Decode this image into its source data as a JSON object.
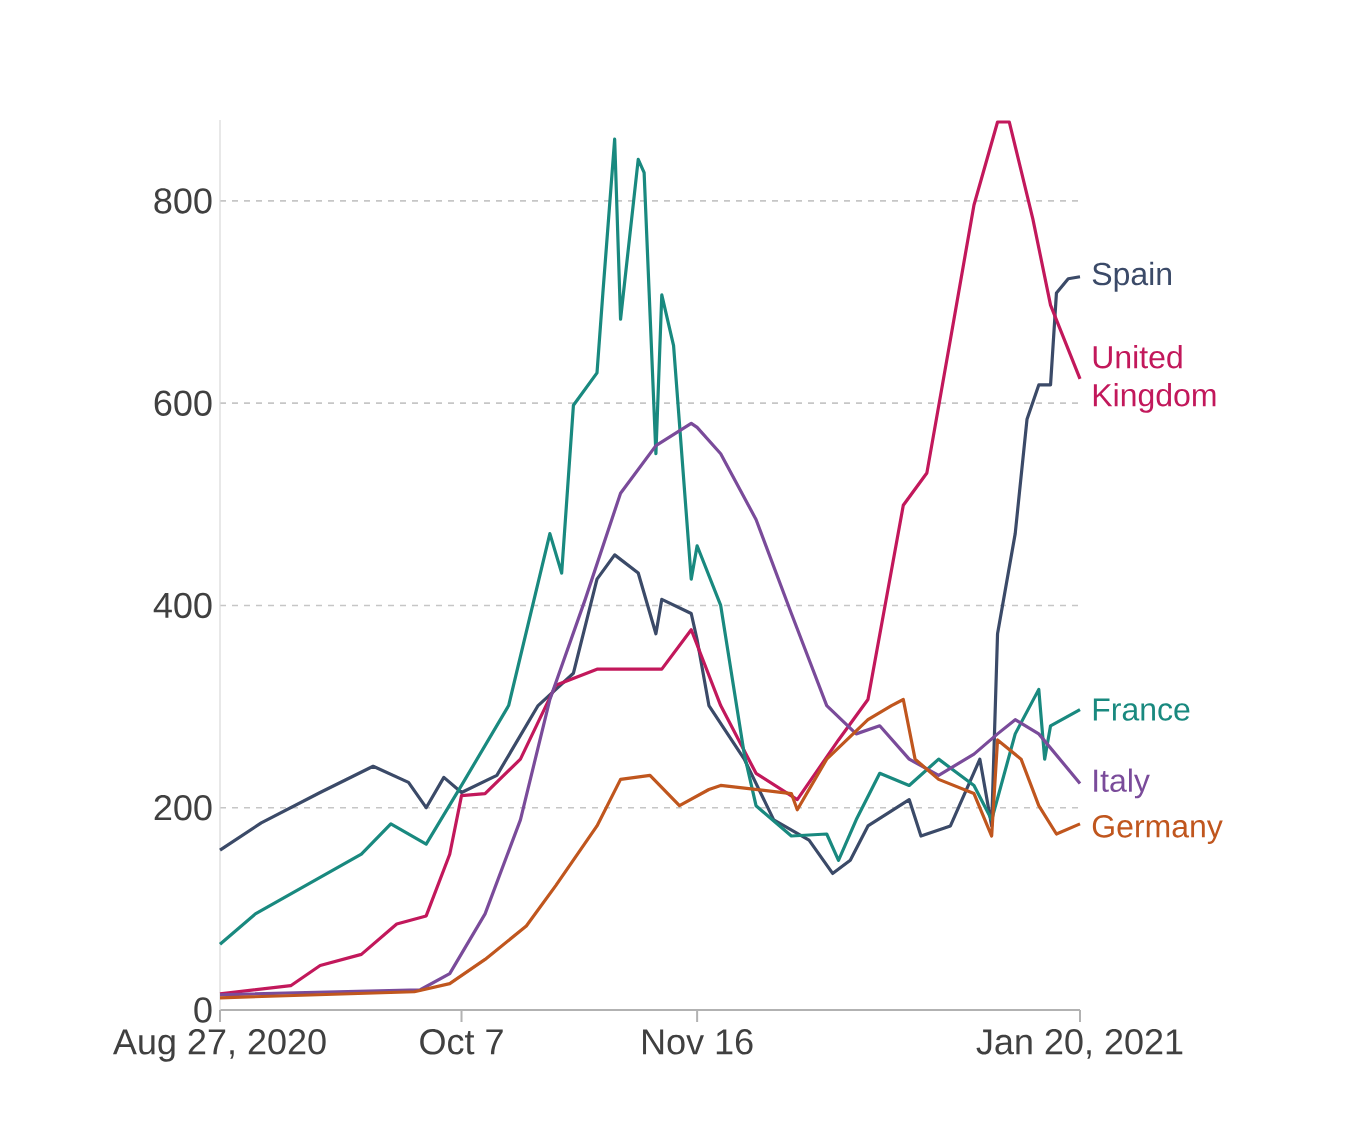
{
  "chart_data": {
    "type": "line",
    "xlim": [
      "2020-08-27",
      "2021-01-20"
    ],
    "xticks": [
      {
        "value": "2020-08-27",
        "label": "Aug 27, 2020"
      },
      {
        "value": "2020-10-07",
        "label": "Oct 7"
      },
      {
        "value": "2020-11-16",
        "label": "Nov 16"
      },
      {
        "value": "2021-01-20",
        "label": "Jan 20, 2021"
      }
    ],
    "ylim": [
      0,
      880
    ],
    "yticks": [
      0,
      200,
      400,
      600,
      800
    ],
    "grid": "y",
    "legend": false,
    "series": [
      {
        "name": "Spain",
        "color": "#3b4a68",
        "x": [
          "2020-08-27",
          "2020-09-03",
          "2020-09-13",
          "2020-09-22",
          "2020-09-28",
          "2020-10-01",
          "2020-10-04",
          "2020-10-07",
          "2020-10-13",
          "2020-10-20",
          "2020-10-26",
          "2020-10-30",
          "2020-11-02",
          "2020-11-06",
          "2020-11-09",
          "2020-11-10",
          "2020-11-15",
          "2020-11-16",
          "2020-11-18",
          "2020-11-24",
          "2020-11-29",
          "2020-12-05",
          "2020-12-09",
          "2020-12-12",
          "2020-12-15",
          "2020-12-22",
          "2020-12-24",
          "2020-12-29",
          "2021-01-03",
          "2021-01-05",
          "2021-01-06",
          "2021-01-09",
          "2021-01-11",
          "2021-01-13",
          "2021-01-15",
          "2021-01-16",
          "2021-01-18",
          "2021-01-20"
        ],
        "values": [
          158,
          185,
          215,
          241,
          225,
          200,
          230,
          215,
          232,
          301,
          333,
          426,
          450,
          432,
          372,
          406,
          392,
          366,
          301,
          248,
          188,
          168,
          135,
          148,
          182,
          208,
          172,
          182,
          248,
          182,
          372,
          471,
          584,
          618,
          618,
          709,
          723,
          725
        ]
      },
      {
        "name": "United Kingdom",
        "color": "#c2185b",
        "x": [
          "2020-08-27",
          "2020-09-08",
          "2020-09-13",
          "2020-09-20",
          "2020-09-26",
          "2020-10-01",
          "2020-10-05",
          "2020-10-07",
          "2020-10-11",
          "2020-10-17",
          "2020-10-23",
          "2020-10-30",
          "2020-11-10",
          "2020-11-15",
          "2020-11-20",
          "2020-11-26",
          "2020-12-03",
          "2020-12-10",
          "2020-12-15",
          "2020-12-21",
          "2020-12-25",
          "2020-12-29",
          "2021-01-02",
          "2021-01-06",
          "2021-01-08",
          "2021-01-12",
          "2021-01-15",
          "2021-01-20"
        ],
        "values": [
          16,
          24,
          44,
          55,
          85,
          93,
          154,
          212,
          214,
          248,
          321,
          337,
          337,
          376,
          301,
          234,
          208,
          267,
          307,
          499,
          531,
          663,
          796,
          878,
          878,
          782,
          697,
          624
        ]
      },
      {
        "name": "France",
        "color": "#19897f",
        "x": [
          "2020-08-27",
          "2020-09-02",
          "2020-09-20",
          "2020-09-25",
          "2020-10-01",
          "2020-10-07",
          "2020-10-15",
          "2020-10-22",
          "2020-10-24",
          "2020-10-26",
          "2020-10-30",
          "2020-10-31",
          "2020-11-02",
          "2020-11-03",
          "2020-11-06",
          "2020-11-07",
          "2020-11-09",
          "2020-11-10",
          "2020-11-12",
          "2020-11-15",
          "2020-11-16",
          "2020-11-20",
          "2020-11-24",
          "2020-11-26",
          "2020-12-02",
          "2020-12-08",
          "2020-12-10",
          "2020-12-13",
          "2020-12-17",
          "2020-12-22",
          "2020-12-27",
          "2021-01-02",
          "2021-01-05",
          "2021-01-09",
          "2021-01-13",
          "2021-01-14",
          "2021-01-15",
          "2021-01-20"
        ],
        "values": [
          65,
          95,
          154,
          184,
          164,
          222,
          301,
          471,
          432,
          598,
          630,
          709,
          861,
          683,
          841,
          828,
          550,
          707,
          657,
          426,
          459,
          400,
          253,
          202,
          172,
          174,
          148,
          188,
          234,
          222,
          248,
          222,
          188,
          273,
          317,
          248,
          281,
          297
        ]
      },
      {
        "name": "Italy",
        "color": "#7a4b9a",
        "x": [
          "2020-08-27",
          "2020-09-30",
          "2020-10-05",
          "2020-10-11",
          "2020-10-17",
          "2020-10-22",
          "2020-10-28",
          "2020-11-03",
          "2020-11-09",
          "2020-11-15",
          "2020-11-16",
          "2020-11-20",
          "2020-11-26",
          "2020-12-02",
          "2020-12-08",
          "2020-12-13",
          "2020-12-17",
          "2020-12-22",
          "2020-12-27",
          "2021-01-02",
          "2021-01-06",
          "2021-01-09",
          "2021-01-13",
          "2021-01-20"
        ],
        "values": [
          15,
          20,
          36,
          95,
          188,
          307,
          406,
          511,
          558,
          580,
          576,
          550,
          485,
          392,
          301,
          273,
          281,
          248,
          232,
          253,
          273,
          287,
          273,
          224
        ]
      },
      {
        "name": "Germany",
        "color": "#c0561e",
        "x": [
          "2020-08-27",
          "2020-09-29",
          "2020-10-05",
          "2020-10-11",
          "2020-10-18",
          "2020-10-23",
          "2020-10-30",
          "2020-11-03",
          "2020-11-08",
          "2020-11-13",
          "2020-11-18",
          "2020-11-20",
          "2020-12-02",
          "2020-12-03",
          "2020-12-08",
          "2020-12-15",
          "2020-12-19",
          "2020-12-21",
          "2020-12-23",
          "2020-12-27",
          "2021-01-02",
          "2021-01-05",
          "2021-01-06",
          "2021-01-10",
          "2021-01-13",
          "2021-01-16",
          "2021-01-20"
        ],
        "values": [
          12,
          18,
          26,
          50,
          83,
          123,
          182,
          228,
          232,
          202,
          218,
          222,
          214,
          198,
          248,
          287,
          301,
          307,
          248,
          228,
          214,
          172,
          267,
          248,
          202,
          174,
          184
        ]
      }
    ]
  }
}
